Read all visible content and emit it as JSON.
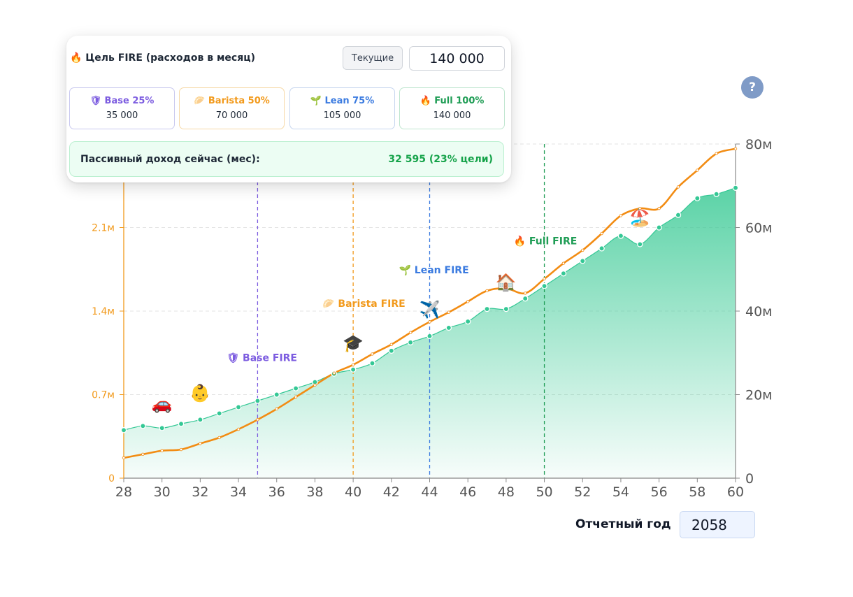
{
  "goal_panel": {
    "title": "🔥 Цель FIRE (расходов в месяц)",
    "current_button": "Текущие",
    "goal_value": "140 000",
    "levels": [
      {
        "label": "🛡 Base 25%",
        "value": "35 000",
        "color": "#7c5ce0",
        "border": "#c9c9ef"
      },
      {
        "label": "🥟 Barista 50%",
        "value": "70 000",
        "color": "#f29a1c",
        "border": "#f6d9a8"
      },
      {
        "label": "🌱 Lean 75%",
        "value": "105 000",
        "color": "#3b7be0",
        "border": "#c7d6ef"
      },
      {
        "label": "🔥 Full 100%",
        "value": "140 000",
        "color": "#1f9d55",
        "border": "#bfe6cf"
      }
    ],
    "passive_label": "Пассивный доход сейчас (мес):",
    "passive_value": "32 595 (23% цели)"
  },
  "help_label": "?",
  "report": {
    "label": "Отчетный год",
    "year": "2058"
  },
  "chart_data": {
    "type": "line",
    "x": [
      28,
      29,
      30,
      31,
      32,
      33,
      34,
      35,
      36,
      37,
      38,
      39,
      40,
      41,
      42,
      43,
      44,
      45,
      46,
      47,
      48,
      49,
      50,
      51,
      52,
      53,
      54,
      55,
      56,
      57,
      58,
      59,
      60
    ],
    "xlim": [
      28,
      60
    ],
    "x_ticks": [
      "28",
      "30",
      "32",
      "34",
      "36",
      "38",
      "40",
      "42",
      "44",
      "46",
      "48",
      "50",
      "52",
      "54",
      "56",
      "58",
      "60"
    ],
    "y_left": {
      "ticks": [
        "0",
        "0.7м",
        "1.4м",
        "2.1м"
      ],
      "tick_values": [
        0,
        0.7,
        1.4,
        2.1
      ],
      "lim": [
        0,
        2.8
      ],
      "color": "#f29a1c"
    },
    "y_right": {
      "ticks": [
        "0",
        "20м",
        "40м",
        "60м",
        "80м"
      ],
      "tick_values": [
        0,
        20,
        40,
        60,
        80
      ],
      "lim": [
        0,
        80
      ],
      "color": "#555555"
    },
    "series": [
      {
        "axis": "right",
        "style": "area",
        "color": "#34c895",
        "values": [
          11.5,
          12.5,
          12,
          13,
          14,
          15.5,
          17,
          18.5,
          20,
          21.5,
          23,
          25,
          26,
          27.5,
          30.5,
          32.5,
          34,
          36,
          37.5,
          40.5,
          40.5,
          43,
          46,
          49,
          52,
          55,
          58,
          56,
          60,
          63,
          67,
          68,
          69.5
        ]
      },
      {
        "axis": "left",
        "style": "line",
        "color": "#f28c13",
        "values": [
          0.17,
          0.2,
          0.23,
          0.24,
          0.29,
          0.34,
          0.41,
          0.49,
          0.58,
          0.68,
          0.78,
          0.88,
          0.95,
          1.04,
          1.12,
          1.22,
          1.31,
          1.39,
          1.48,
          1.57,
          1.59,
          1.55,
          1.67,
          1.8,
          1.91,
          2.05,
          2.2,
          2.26,
          2.26,
          2.44,
          2.58,
          2.72,
          2.76
        ]
      }
    ],
    "vlines": [
      {
        "x": 28,
        "color": "#f29a1c",
        "style": "solid"
      },
      {
        "x": 35,
        "color": "#7c5ce0",
        "style": "dashed"
      },
      {
        "x": 40,
        "color": "#f29a1c",
        "style": "dashed"
      },
      {
        "x": 44,
        "color": "#3b7be0",
        "style": "dashed"
      },
      {
        "x": 50,
        "color": "#1f9d55",
        "style": "dashed"
      }
    ],
    "annotations": [
      {
        "text": "🛡 Base FIRE",
        "x": 35,
        "y_right": 28,
        "color": "#7c5ce0"
      },
      {
        "text": "🥟 Barista FIRE",
        "x": 40,
        "y_right": 41,
        "color": "#f29a1c"
      },
      {
        "text": "🌱 Lean FIRE",
        "x": 44,
        "y_right": 49,
        "color": "#3b7be0"
      },
      {
        "text": "🔥 Full FIRE",
        "x": 50,
        "y_right": 56,
        "color": "#1f9d55"
      }
    ],
    "events": [
      {
        "icon": "🚗",
        "x": 30,
        "y_right": 16.5
      },
      {
        "icon": "👶",
        "x": 32,
        "y_right": 19
      },
      {
        "icon": "🎓",
        "x": 40,
        "y_right": 31
      },
      {
        "icon": "✈️",
        "x": 44,
        "y_right": 39
      },
      {
        "icon": "🏠",
        "x": 48,
        "y_right": 45.5
      },
      {
        "icon": "🏖️",
        "x": 55,
        "y_right": 61
      }
    ],
    "grid": true
  }
}
